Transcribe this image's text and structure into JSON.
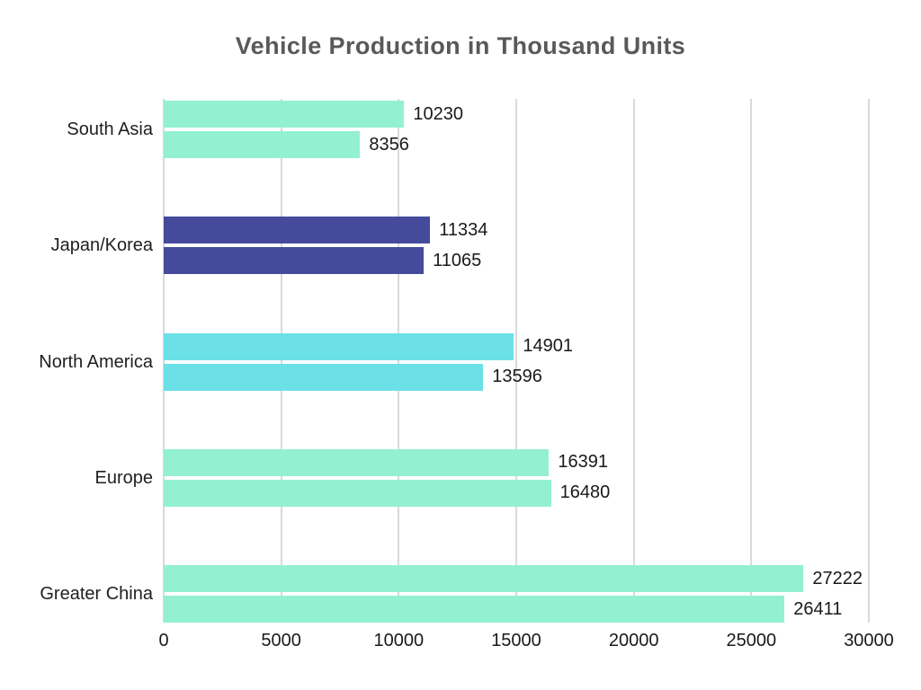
{
  "chart_data": {
    "type": "bar",
    "orientation": "horizontal",
    "title": "Vehicle Production in Thousand Units",
    "categories": [
      "South Asia",
      "Japan/Korea",
      "North America",
      "Europe",
      "Greater China"
    ],
    "series": [
      {
        "name": "upper-bar",
        "values": [
          10230,
          11334,
          14901,
          16391,
          27222
        ]
      },
      {
        "name": "lower-bar",
        "values": [
          8356,
          11065,
          13596,
          16480,
          26411
        ]
      }
    ],
    "bar_colors": [
      "#93F1D2",
      "#454A9B",
      "#6BE1E7",
      "#93F1D2",
      "#93F1D2"
    ],
    "x_ticks": [
      0,
      5000,
      10000,
      15000,
      20000,
      25000,
      30000
    ],
    "xlim": [
      0,
      30000
    ],
    "grid": true,
    "legend": false,
    "colors": {
      "title_text": "#58595b",
      "label_text": "#1f1f1f",
      "gridline": "#d9d9d9",
      "background": "#ffffff"
    }
  }
}
